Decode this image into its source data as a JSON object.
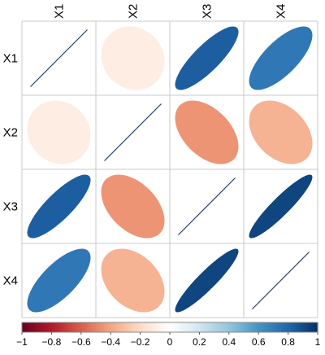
{
  "chart_data": {
    "type": "heatmap",
    "method": "ellipse",
    "variables": [
      "X1",
      "X2",
      "X3",
      "X4"
    ],
    "matrix": [
      [
        1.0,
        -0.1,
        0.83,
        0.72
      ],
      [
        -0.1,
        1.0,
        -0.45,
        -0.35
      ],
      [
        0.83,
        -0.45,
        1.0,
        0.92
      ],
      [
        0.72,
        -0.35,
        0.92,
        1.0
      ]
    ],
    "colorbar": {
      "range": [
        -1,
        1
      ],
      "ticks": [
        "−1",
        "−0.8",
        "−0.6",
        "−0.4",
        "−0.2",
        "0",
        "0.2",
        "0.4",
        "0.6",
        "0.8",
        "1"
      ],
      "palette": [
        "#67001F",
        "#B2182B",
        "#D6604D",
        "#F4A582",
        "#FDDBC7",
        "#FFFFFF",
        "#D1E5F0",
        "#92C5DE",
        "#4393C3",
        "#2166AC",
        "#053061"
      ],
      "placement": "bottom"
    },
    "grid": true
  }
}
